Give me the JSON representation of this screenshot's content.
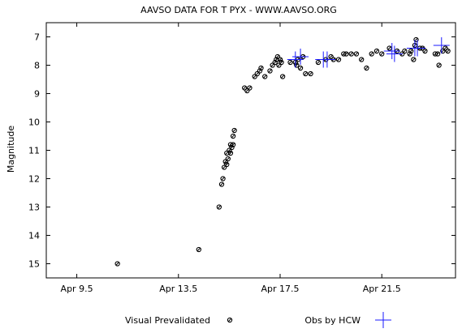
{
  "chart_data": {
    "type": "scatter",
    "title": "AAVSO DATA FOR T PYX - WWW.AAVSO.ORG",
    "xlabel": "",
    "ylabel": "Magnitude",
    "xlim": [
      8.3,
      24.4
    ],
    "ylim": [
      15.5,
      6.5
    ],
    "y_inverted": true,
    "x_ticks": [
      {
        "value": 9.5,
        "label": "Apr 9.5"
      },
      {
        "value": 13.5,
        "label": "Apr 13.5"
      },
      {
        "value": 17.5,
        "label": "Apr 17.5"
      },
      {
        "value": 21.5,
        "label": "Apr 21.5"
      }
    ],
    "y_ticks": [
      7,
      8,
      9,
      10,
      11,
      12,
      13,
      14,
      15
    ],
    "grid": false,
    "legend_position": "bottom",
    "series": [
      {
        "name": "Visual Prevalidated",
        "marker": "circle-hatched",
        "color": "#000000",
        "points": [
          [
            11.1,
            15.0
          ],
          [
            14.3,
            14.5
          ],
          [
            15.1,
            13.0
          ],
          [
            15.2,
            12.2
          ],
          [
            15.25,
            12.0
          ],
          [
            15.3,
            11.6
          ],
          [
            15.35,
            11.4
          ],
          [
            15.4,
            11.5
          ],
          [
            15.45,
            11.3
          ],
          [
            15.4,
            11.1
          ],
          [
            15.5,
            11.0
          ],
          [
            15.55,
            11.1
          ],
          [
            15.6,
            10.9
          ],
          [
            15.55,
            10.8
          ],
          [
            15.65,
            10.8
          ],
          [
            15.65,
            10.5
          ],
          [
            15.7,
            10.3
          ],
          [
            16.1,
            8.8
          ],
          [
            16.2,
            8.9
          ],
          [
            16.3,
            8.8
          ],
          [
            16.5,
            8.4
          ],
          [
            16.6,
            8.3
          ],
          [
            16.7,
            8.2
          ],
          [
            16.75,
            8.1
          ],
          [
            16.9,
            8.4
          ],
          [
            17.1,
            8.2
          ],
          [
            17.2,
            8.0
          ],
          [
            17.3,
            7.9
          ],
          [
            17.35,
            7.8
          ],
          [
            17.4,
            7.7
          ],
          [
            17.45,
            8.0
          ],
          [
            17.5,
            7.8
          ],
          [
            17.55,
            7.9
          ],
          [
            17.6,
            8.4
          ],
          [
            17.9,
            7.9
          ],
          [
            18.1,
            7.9
          ],
          [
            18.15,
            8.0
          ],
          [
            18.2,
            7.8
          ],
          [
            18.3,
            8.1
          ],
          [
            18.4,
            7.7
          ],
          [
            18.5,
            8.3
          ],
          [
            18.7,
            8.3
          ],
          [
            19.0,
            7.9
          ],
          [
            19.3,
            7.8
          ],
          [
            19.5,
            7.7
          ],
          [
            19.6,
            7.8
          ],
          [
            19.8,
            7.8
          ],
          [
            20.0,
            7.6
          ],
          [
            20.1,
            7.6
          ],
          [
            20.3,
            7.6
          ],
          [
            20.5,
            7.6
          ],
          [
            20.7,
            7.8
          ],
          [
            20.9,
            8.1
          ],
          [
            21.1,
            7.6
          ],
          [
            21.3,
            7.5
          ],
          [
            21.5,
            7.6
          ],
          [
            21.8,
            7.4
          ],
          [
            22.1,
            7.5
          ],
          [
            22.3,
            7.6
          ],
          [
            22.4,
            7.5
          ],
          [
            22.6,
            7.6
          ],
          [
            22.65,
            7.5
          ],
          [
            22.75,
            7.8
          ],
          [
            22.8,
            7.3
          ],
          [
            22.85,
            7.1
          ],
          [
            23.0,
            7.4
          ],
          [
            23.1,
            7.4
          ],
          [
            23.2,
            7.5
          ],
          [
            23.6,
            7.6
          ],
          [
            23.7,
            7.6
          ],
          [
            23.75,
            8.0
          ],
          [
            23.9,
            7.5
          ],
          [
            24.0,
            7.4
          ],
          [
            24.1,
            7.5
          ]
        ]
      },
      {
        "name": "Obs by HCW",
        "marker": "plus",
        "color": "#1a1aff",
        "points": [
          [
            18.1,
            7.8
          ],
          [
            18.3,
            7.7
          ],
          [
            19.2,
            7.8
          ],
          [
            19.35,
            7.8
          ],
          [
            21.9,
            7.5
          ],
          [
            22.0,
            7.6
          ],
          [
            22.8,
            7.4
          ],
          [
            22.9,
            7.4
          ],
          [
            23.85,
            7.3
          ]
        ]
      }
    ]
  }
}
